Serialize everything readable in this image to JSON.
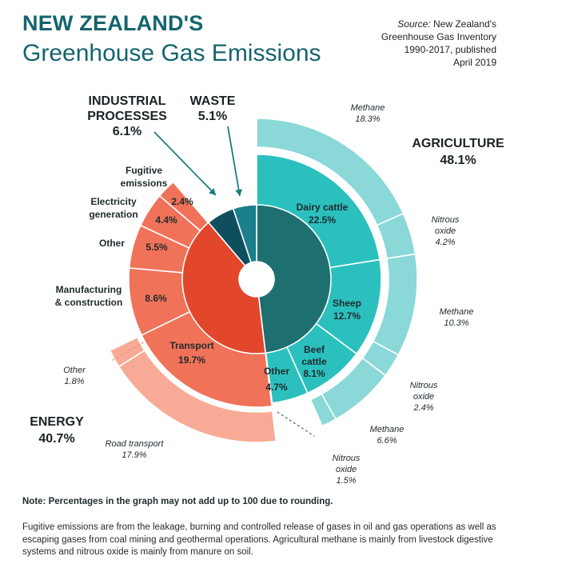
{
  "header": {
    "title_line1": "NEW ZEALAND'S",
    "title_line2": "Greenhouse Gas Emissions",
    "source_label": "Source:",
    "source_rest": "New Zealand's",
    "source_line2": "Greenhouse Gas Inventory",
    "source_line3": "1990-2017, published",
    "source_line4": "April 2019"
  },
  "footer": {
    "note": "Note: Percentages in the graph may not add up to 100 due to rounding.",
    "explanation": "Fugitive emissions are from the leakage, burning and controlled release of gases in oil and gas operations as well as escaping gases from coal mining and geothermal operations. Agricultural methane is mainly from livestock digestive systems and nitrous oxide is mainly from manure on soil."
  },
  "chart_data": {
    "type": "pie",
    "variant": "sunburst",
    "sectors": [
      {
        "name": "AGRICULTURE",
        "pct_label": "48.1%",
        "value": 48.1,
        "color": "#1e6f70"
      },
      {
        "name": "ENERGY",
        "pct_label": "40.7%",
        "value": 40.7,
        "color": "#e2472c"
      },
      {
        "name": "INDUSTRIAL PROCESSES",
        "name_lines": [
          "INDUSTRIAL",
          "PROCESSES"
        ],
        "pct_label": "6.1%",
        "value": 6.1,
        "color": "#0f4f5d"
      },
      {
        "name": "WASTE",
        "pct_label": "5.1%",
        "value": 5.1,
        "color": "#1c7f8c"
      }
    ],
    "subcategories": [
      {
        "sector": "AGRICULTURE",
        "name": "Dairy cattle",
        "pct_label": "22.5%",
        "value": 22.5,
        "color": "#2bc0bd"
      },
      {
        "sector": "AGRICULTURE",
        "name": "Sheep",
        "pct_label": "12.7%",
        "value": 12.7,
        "color": "#2bc0bd"
      },
      {
        "sector": "AGRICULTURE",
        "name": "Beef cattle",
        "name_lines": [
          "Beef",
          "cattle"
        ],
        "pct_label": "8.1%",
        "value": 8.1,
        "color": "#2bc0bd"
      },
      {
        "sector": "AGRICULTURE",
        "name": "Other",
        "pct_label": "4.7%",
        "value": 4.7,
        "color": "#2bc0bd"
      },
      {
        "sector": "ENERGY",
        "name": "Transport",
        "pct_label": "19.7%",
        "value": 19.7,
        "color": "#f07259"
      },
      {
        "sector": "ENERGY",
        "name": "Manufacturing & construction",
        "name_lines": [
          "Manufacturing",
          "& construction"
        ],
        "pct_label": "8.6%",
        "value": 8.6,
        "color": "#f07259"
      },
      {
        "sector": "ENERGY",
        "name": "Other",
        "pct_label": "5.5%",
        "value": 5.5,
        "color": "#f07259"
      },
      {
        "sector": "ENERGY",
        "name": "Electricity generation",
        "name_lines": [
          "Electricity",
          "generation"
        ],
        "pct_label": "4.4%",
        "value": 4.4,
        "color": "#f07259"
      },
      {
        "sector": "ENERGY",
        "name": "Fugitive emissions",
        "name_lines": [
          "Fugitive",
          "emissions"
        ],
        "pct_label": "2.4%",
        "value": 2.4,
        "color": "#f07259"
      }
    ],
    "gas_breakdown": [
      {
        "parent": "Dairy cattle",
        "name": "Methane",
        "pct_label": "18.3%",
        "value": 18.3,
        "color": "#8ad8d8"
      },
      {
        "parent": "Dairy cattle",
        "name": "Nitrous oxide",
        "name_lines": [
          "Nitrous",
          "oxide"
        ],
        "pct_label": "4.2%",
        "value": 4.2,
        "color": "#8ad8d8"
      },
      {
        "parent": "Sheep",
        "name": "Methane",
        "pct_label": "10.3%",
        "value": 10.3,
        "color": "#8ad8d8"
      },
      {
        "parent": "Sheep",
        "name": "Nitrous oxide",
        "name_lines": [
          "Nitrous",
          "oxide"
        ],
        "pct_label": "2.4%",
        "value": 2.4,
        "color": "#8ad8d8"
      },
      {
        "parent": "Beef cattle",
        "name": "Methane",
        "pct_label": "6.6%",
        "value": 6.6,
        "color": "#8ad8d8"
      },
      {
        "parent": "Beef cattle",
        "name": "Nitrous oxide",
        "name_lines": [
          "Nitrous",
          "oxide"
        ],
        "pct_label": "1.5%",
        "value": 1.5,
        "color": "#8ad8d8"
      },
      {
        "parent": "Transport",
        "name": "Road transport",
        "pct_label": "17.9%",
        "value": 17.9,
        "color": "#f7aa96"
      },
      {
        "parent": "Transport",
        "name": "Other",
        "pct_label": "1.8%",
        "value": 1.8,
        "color": "#f7aa96"
      }
    ]
  }
}
